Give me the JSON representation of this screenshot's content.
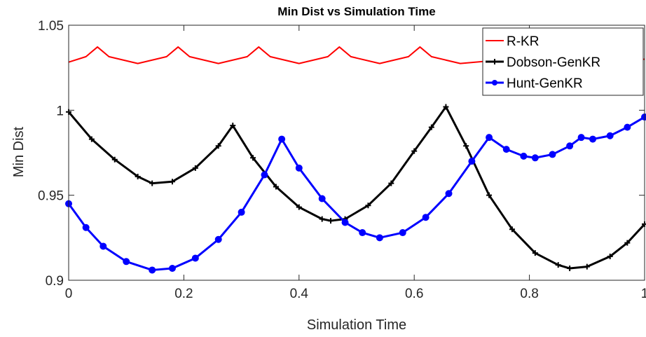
{
  "chart_data": {
    "type": "line",
    "title": "Min Dist vs Simulation Time",
    "xlabel": "Simulation Time",
    "ylabel": "Min Dist",
    "xlim": [
      0,
      1
    ],
    "ylim": [
      0.9,
      1.05
    ],
    "x_ticks": [
      0,
      0.2,
      0.4,
      0.6,
      0.8,
      1
    ],
    "x_tick_labels": [
      "0",
      "0.2",
      "0.4",
      "0.6",
      "0.8",
      "1"
    ],
    "y_ticks": [
      0.9,
      0.95,
      1,
      1.05
    ],
    "y_tick_labels": [
      "0.9",
      "0.95",
      "1",
      "1.05"
    ],
    "grid": false,
    "legend_position": "top-right",
    "series": [
      {
        "name": "R-KR",
        "color": "#ff0000",
        "marker": "none",
        "x": [
          0,
          0.03,
          0.05,
          0.07,
          0.12,
          0.17,
          0.19,
          0.21,
          0.26,
          0.31,
          0.33,
          0.35,
          0.4,
          0.45,
          0.47,
          0.49,
          0.54,
          0.59,
          0.61,
          0.63,
          0.68,
          0.73,
          0.75,
          0.8,
          0.85,
          0.89,
          0.94,
          1.0
        ],
        "y": [
          1.0283,
          1.0315,
          1.0372,
          1.0315,
          1.0275,
          1.0315,
          1.0372,
          1.0315,
          1.0275,
          1.0315,
          1.0372,
          1.0315,
          1.0275,
          1.0315,
          1.0372,
          1.0315,
          1.0275,
          1.0315,
          1.0372,
          1.0315,
          1.0275,
          1.029,
          1.029,
          1.029,
          1.029,
          1.029,
          1.029,
          1.03
        ]
      },
      {
        "name": "Dobson-GenKR",
        "color": "#000000",
        "marker": "plus",
        "x": [
          0,
          0.04,
          0.08,
          0.12,
          0.145,
          0.18,
          0.22,
          0.26,
          0.285,
          0.32,
          0.36,
          0.4,
          0.44,
          0.455,
          0.48,
          0.52,
          0.56,
          0.6,
          0.63,
          0.655,
          0.69,
          0.73,
          0.77,
          0.81,
          0.85,
          0.87,
          0.9,
          0.94,
          0.97,
          1.0
        ],
        "y": [
          0.999,
          0.983,
          0.971,
          0.961,
          0.957,
          0.958,
          0.966,
          0.979,
          0.991,
          0.972,
          0.955,
          0.943,
          0.936,
          0.935,
          0.936,
          0.944,
          0.957,
          0.976,
          0.99,
          1.002,
          0.979,
          0.95,
          0.93,
          0.916,
          0.909,
          0.907,
          0.908,
          0.914,
          0.922,
          0.933
        ]
      },
      {
        "name": "Hunt-GenKR",
        "color": "#0000ff",
        "marker": "asterisk",
        "x": [
          0,
          0.03,
          0.06,
          0.1,
          0.145,
          0.18,
          0.22,
          0.26,
          0.3,
          0.34,
          0.37,
          0.4,
          0.44,
          0.48,
          0.51,
          0.54,
          0.58,
          0.62,
          0.66,
          0.7,
          0.73,
          0.76,
          0.79,
          0.81,
          0.84,
          0.87,
          0.89,
          0.91,
          0.94,
          0.97,
          1.0
        ],
        "y": [
          0.945,
          0.931,
          0.92,
          0.911,
          0.906,
          0.907,
          0.913,
          0.924,
          0.94,
          0.962,
          0.983,
          0.966,
          0.948,
          0.934,
          0.928,
          0.925,
          0.928,
          0.937,
          0.951,
          0.97,
          0.984,
          0.977,
          0.973,
          0.972,
          0.974,
          0.979,
          0.984,
          0.983,
          0.985,
          0.99,
          0.996
        ]
      }
    ]
  }
}
